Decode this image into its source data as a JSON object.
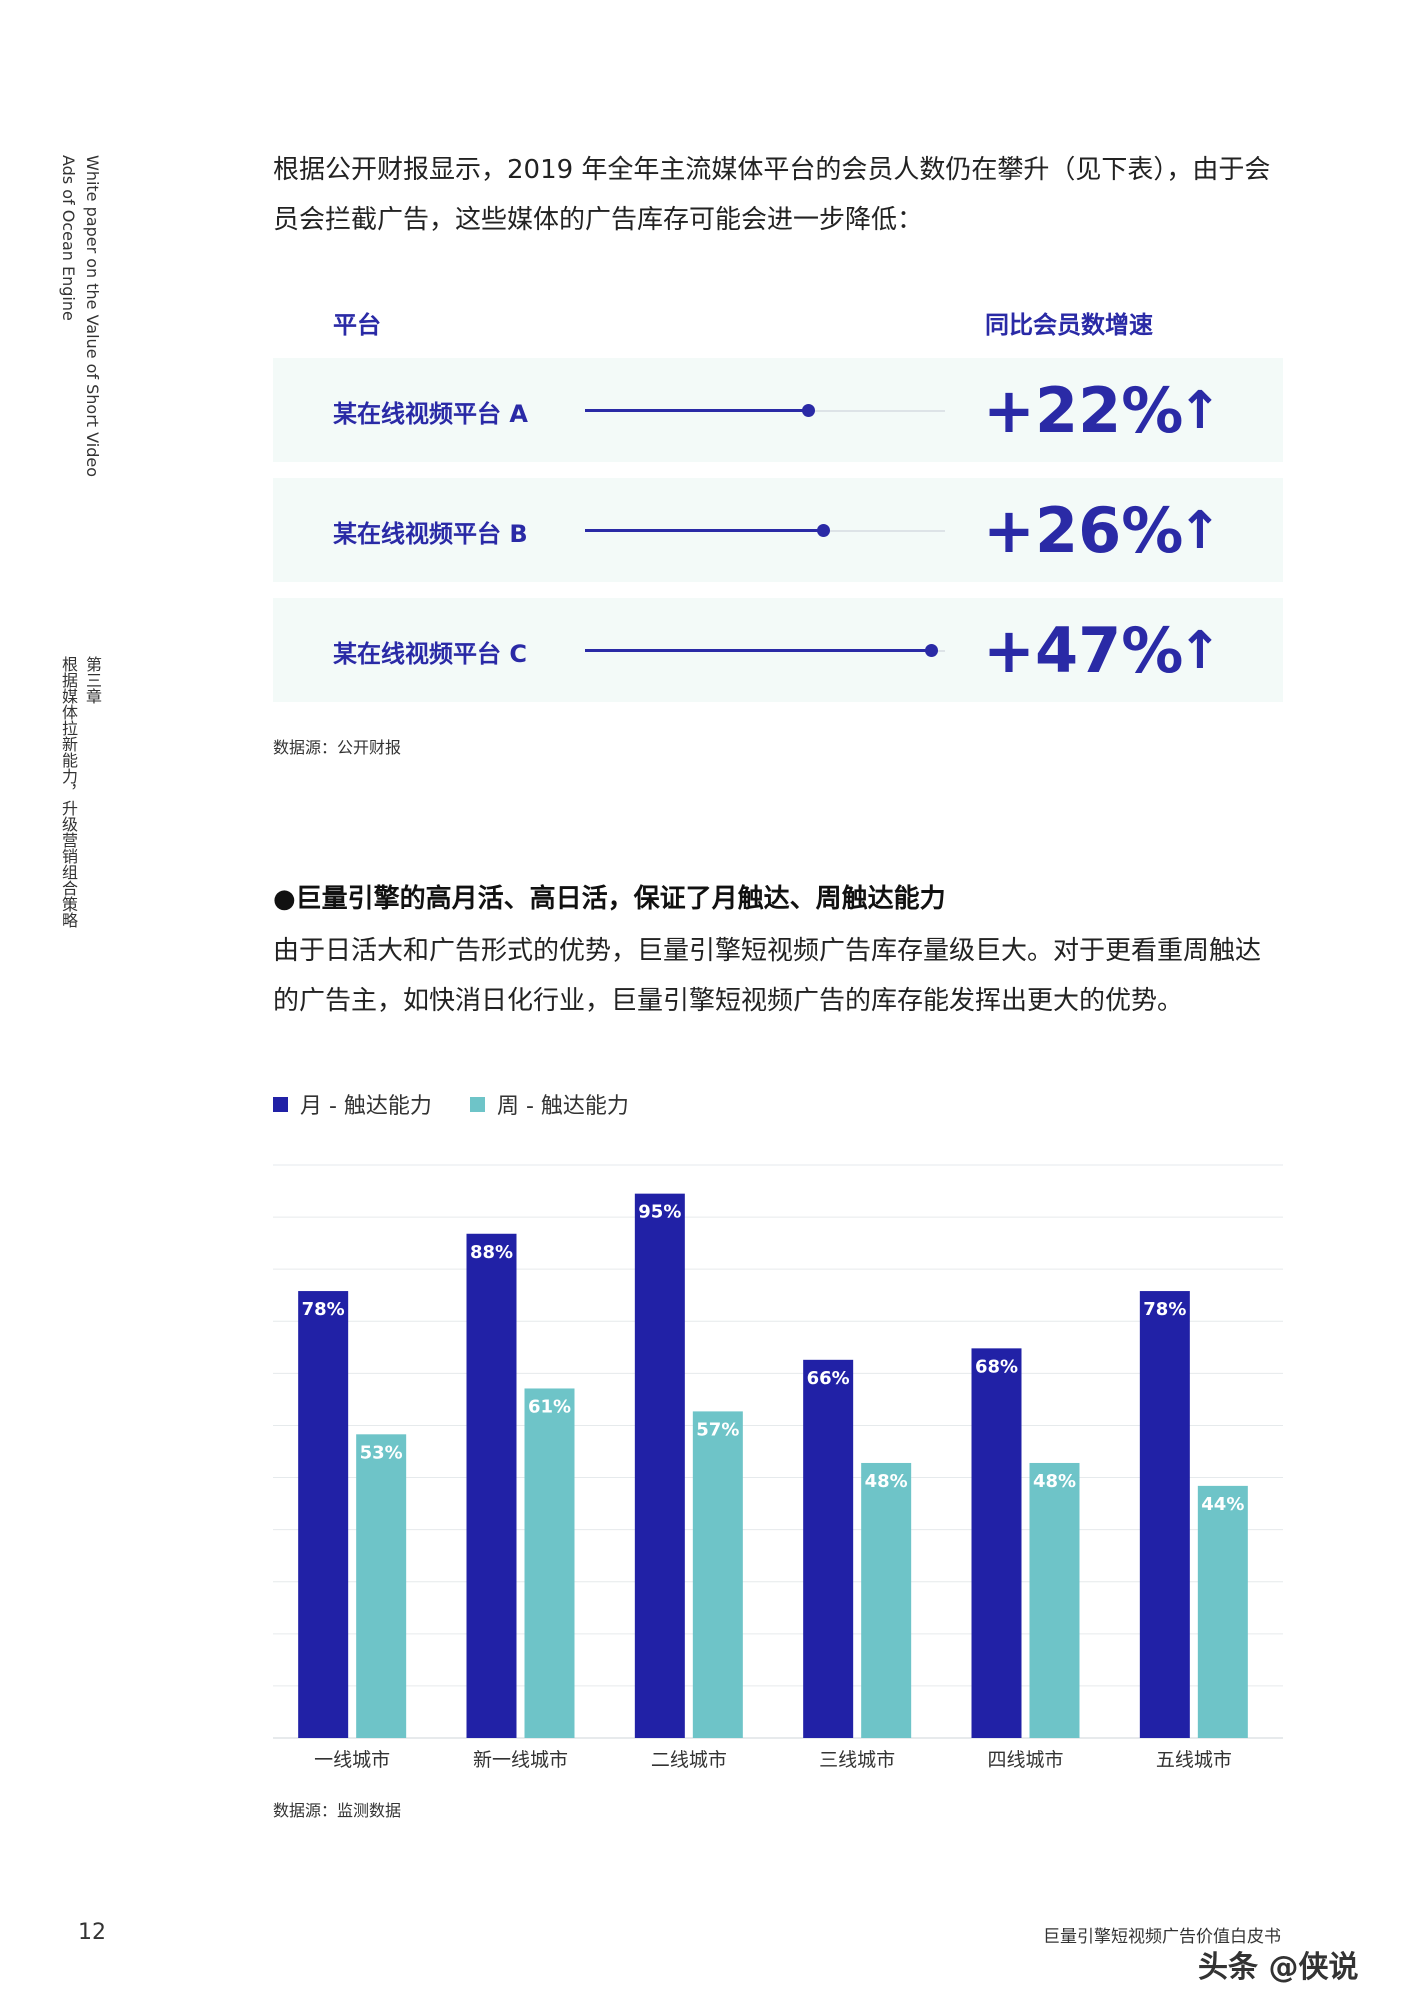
{
  "sidebar": {
    "title_line1": "White paper on the Value of Short Video",
    "title_line2": "Ads of Ocean Engine",
    "chapter": "第三章",
    "chapter_title": "根据媒体拉新能力，升级营销组合策略"
  },
  "intro_text": "根据公开财报显示，2019 年全年主流媒体平台的会员人数仍在攀升（见下表），由于会员会拦截广告，这些媒体的广告库存可能会进一步降低：",
  "membership_table": {
    "header_platform": "平台",
    "header_growth": "同比会员数增速",
    "rows": [
      {
        "label": "某在线视频平台 A",
        "growth": "+22%",
        "level": 0.62,
        "arrow": "↑"
      },
      {
        "label": "某在线视频平台 B",
        "growth": "+26%",
        "level": 0.66,
        "arrow": "↑"
      },
      {
        "label": "某在线视频平台 C",
        "growth": "+47%",
        "level": 0.96,
        "arrow": "↑"
      }
    ],
    "colors": {
      "accent": "#2a2aa6",
      "row_bg": "#f3faf8"
    },
    "source": "数据源：公开财报"
  },
  "section": {
    "subheading": "●巨量引擎的高月活、高日活，保证了月触达、周触达能力",
    "body": "由于日活大和广告形式的优势，巨量引擎短视频广告库存量级巨大。对于更看重周触达的广告主，如快消日化行业，巨量引擎短视频广告的库存能发挥出更大的优势。"
  },
  "chart_data": {
    "type": "bar",
    "title": "",
    "xlabel": "",
    "ylabel": "",
    "categories": [
      "一线城市",
      "新一线城市",
      "二线城市",
      "三线城市",
      "四线城市",
      "五线城市"
    ],
    "series": [
      {
        "name": "月 - 触达能力",
        "values": [
          78,
          88,
          95,
          66,
          68,
          78
        ],
        "labels": [
          "78%",
          "88%",
          "95%",
          "66%",
          "68%",
          "78%"
        ],
        "color": "#2121a6"
      },
      {
        "name": "周 - 触达能力",
        "values": [
          53,
          61,
          57,
          48,
          48,
          44
        ],
        "labels": [
          "53%",
          "61%",
          "57%",
          "48%",
          "48%",
          "44%"
        ],
        "color": "#6ec4c8"
      }
    ],
    "ylim": [
      0,
      100
    ],
    "grid": true,
    "legend": "top-left",
    "source": "数据源：监测数据"
  },
  "footer": {
    "page_number": "12",
    "book_title": "巨量引擎短视频广告价值白皮书",
    "watermark": "头条 @侠说"
  }
}
